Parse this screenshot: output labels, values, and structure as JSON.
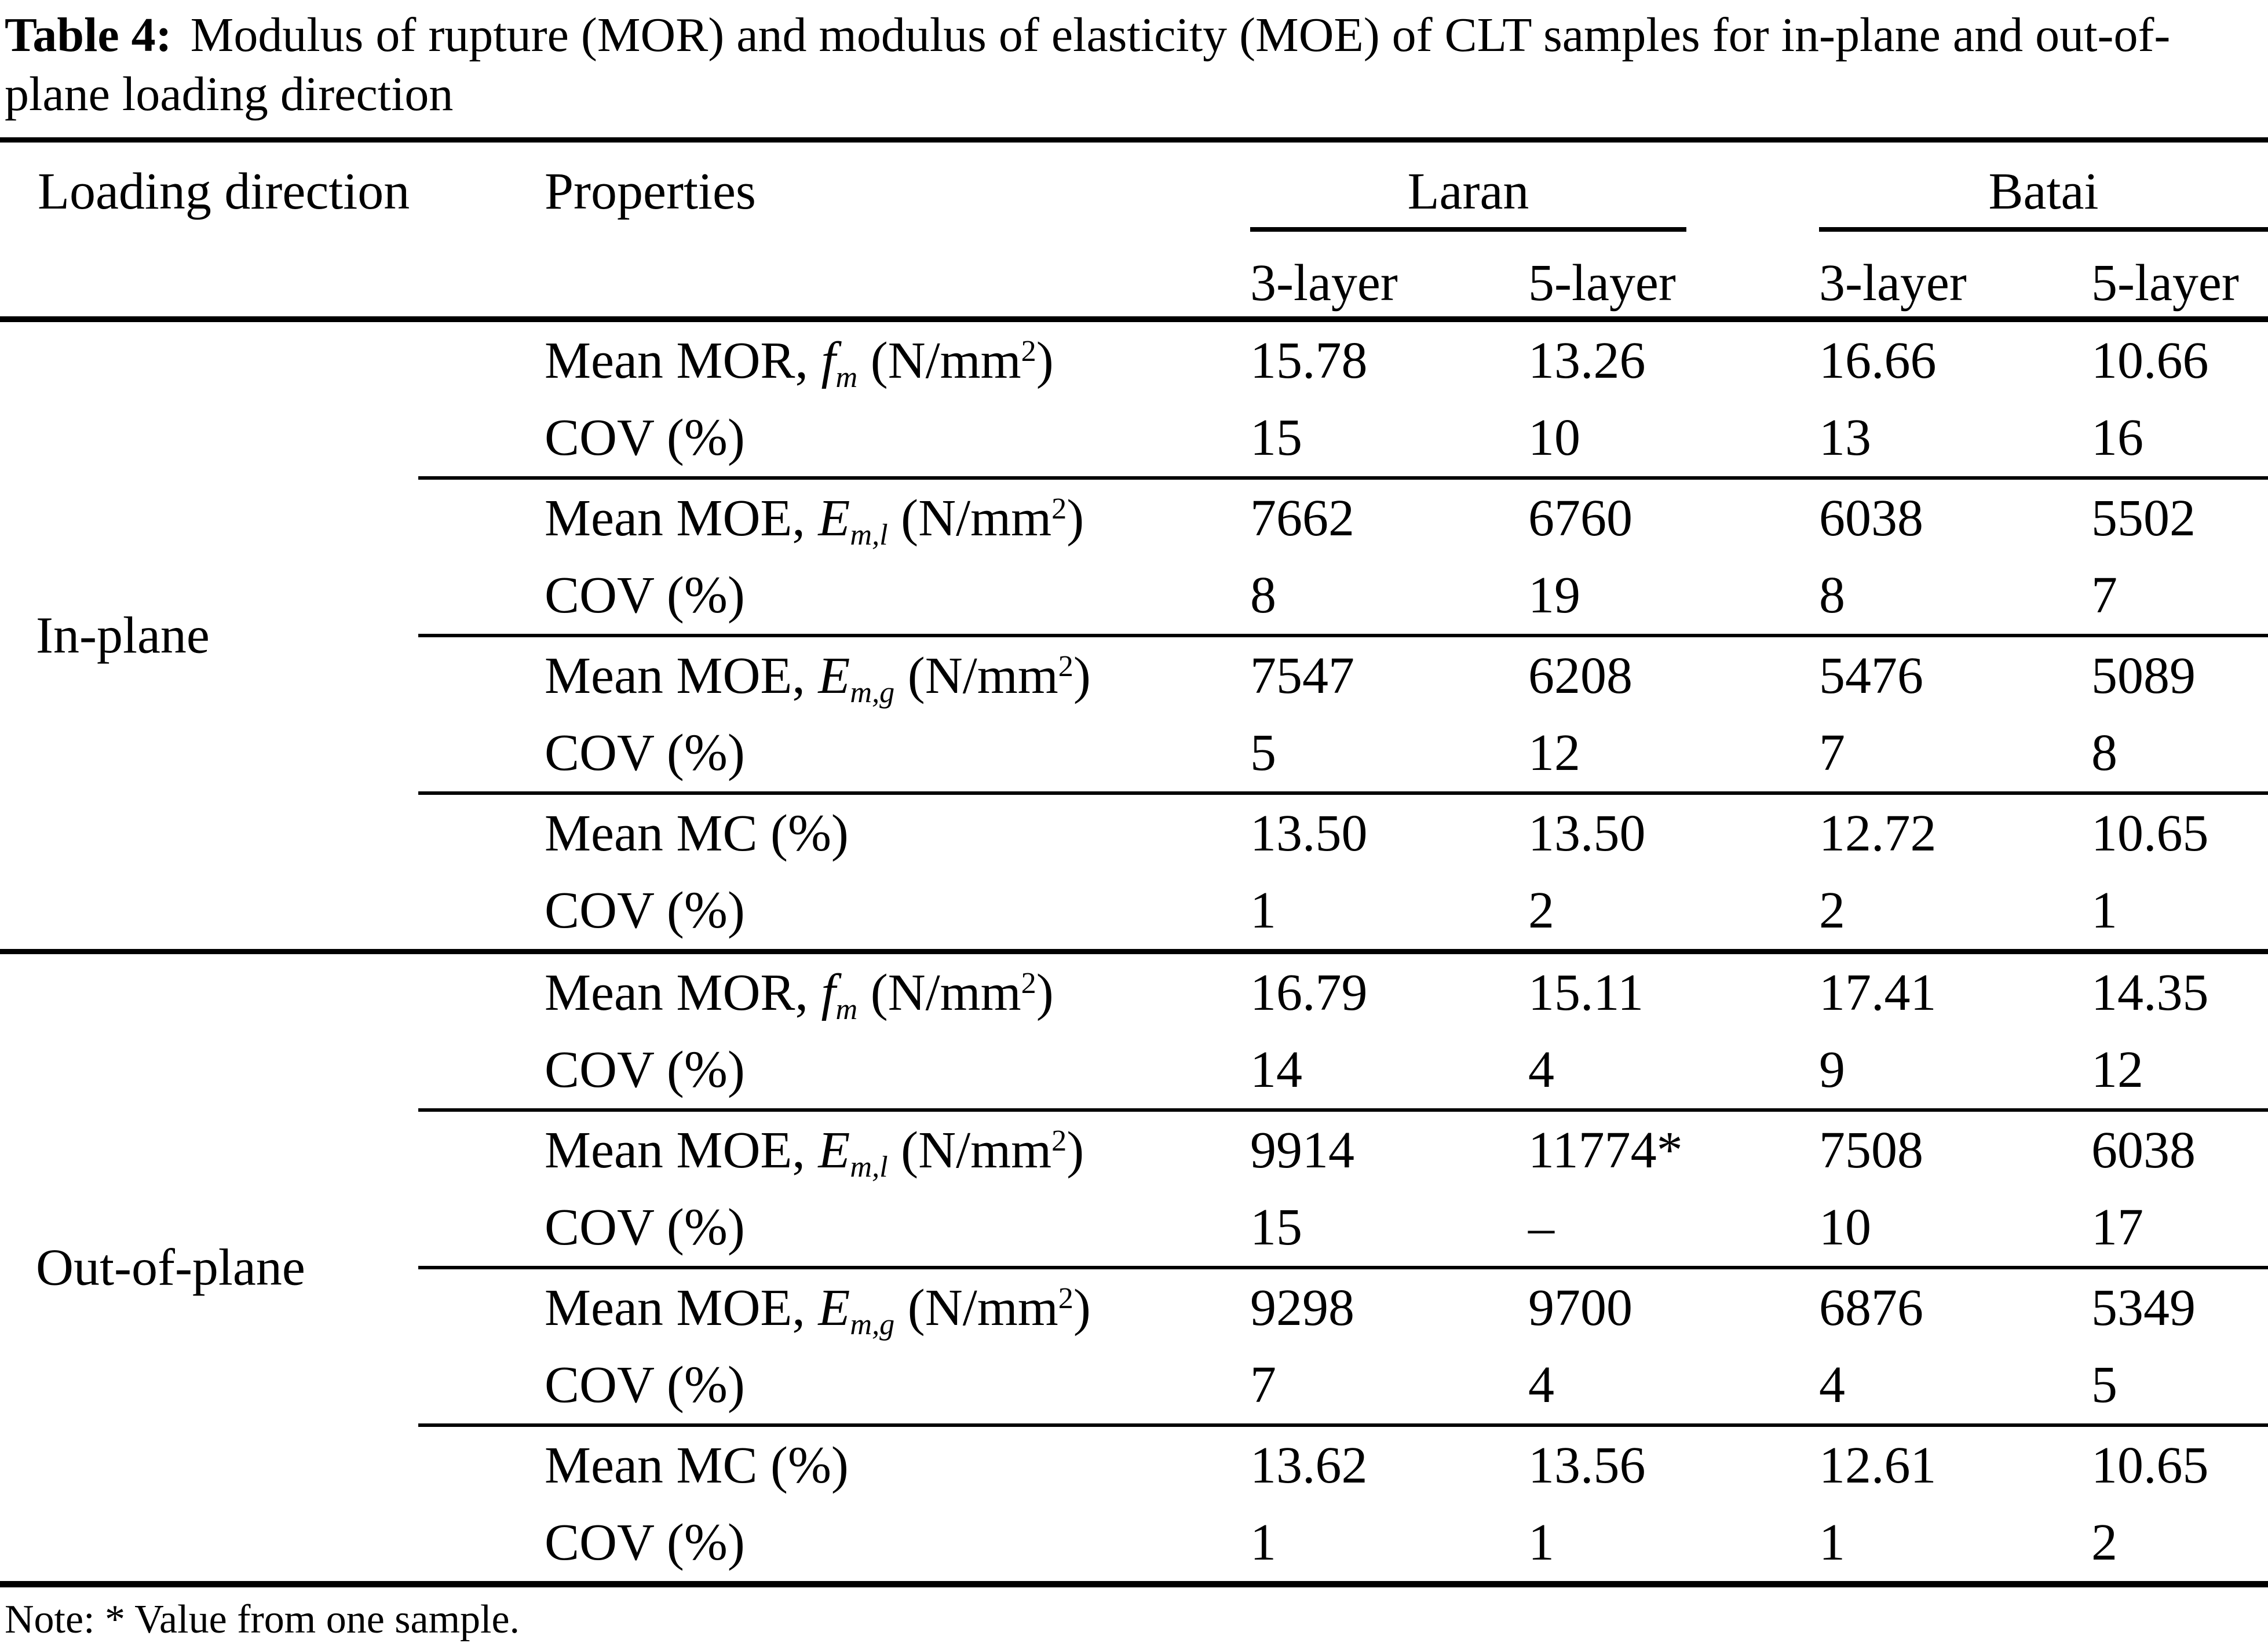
{
  "colors": {
    "text": "#000000",
    "background": "#ffffff",
    "rule": "#000000"
  },
  "title": {
    "label": "Table 4:",
    "text": "Modulus of rupture (MOR) and modulus of elasticity (MOE) of CLT samples for in-plane and out-of-plane loading direction"
  },
  "header": {
    "loading_direction": "Loading direction",
    "properties": "Properties",
    "groups": [
      "Laran",
      "Batai"
    ],
    "layers": [
      "3-layer",
      "5-layer",
      "3-layer",
      "5-layer"
    ]
  },
  "sections": [
    {
      "name": "In-plane",
      "rows": [
        {
          "label": {
            "pre": "Mean MOR, ",
            "sym": "f",
            "sub": "m",
            "mid": " (N/mm",
            "sup": "2",
            "post": ")"
          },
          "values": [
            "15.78",
            "13.26",
            "16.66",
            "10.66"
          ]
        },
        {
          "label": {
            "pre": "COV (%)"
          },
          "values": [
            "15",
            "10",
            "13",
            "16"
          ],
          "sep_after": true
        },
        {
          "label": {
            "pre": "Mean MOE, ",
            "sym": "E",
            "sub": "m,l",
            "mid": " (N/mm",
            "sup": "2",
            "post": ")"
          },
          "values": [
            "7662",
            "6760",
            "6038",
            "5502"
          ]
        },
        {
          "label": {
            "pre": "COV (%)"
          },
          "values": [
            "8",
            "19",
            "8",
            "7"
          ],
          "sep_after": true
        },
        {
          "label": {
            "pre": "Mean MOE, ",
            "sym": "E",
            "sub": "m,g",
            "mid": " (N/mm",
            "sup": "2",
            "post": ")"
          },
          "values": [
            "7547",
            "6208",
            "5476",
            "5089"
          ]
        },
        {
          "label": {
            "pre": "COV (%)"
          },
          "values": [
            "5",
            "12",
            "7",
            "8"
          ],
          "sep_after": true
        },
        {
          "label": {
            "pre": "Mean MC (%)"
          },
          "values": [
            "13.50",
            "13.50",
            "12.72",
            "10.65"
          ]
        },
        {
          "label": {
            "pre": "COV (%)"
          },
          "values": [
            "1",
            "2",
            "2",
            "1"
          ]
        }
      ]
    },
    {
      "name": "Out-of-plane",
      "rows": [
        {
          "label": {
            "pre": "Mean MOR, ",
            "sym": "f",
            "sub": "m",
            "mid": " (N/mm",
            "sup": "2",
            "post": ")"
          },
          "values": [
            "16.79",
            "15.11",
            "17.41",
            "14.35"
          ]
        },
        {
          "label": {
            "pre": "COV (%)"
          },
          "values": [
            "14",
            "4",
            "9",
            "12"
          ],
          "sep_after": true
        },
        {
          "label": {
            "pre": "Mean MOE, ",
            "sym": "E",
            "sub": "m,l",
            "mid": " (N/mm",
            "sup": "2",
            "post": ")"
          },
          "values": [
            "9914",
            "11774*",
            "7508",
            "6038"
          ]
        },
        {
          "label": {
            "pre": "COV (%)"
          },
          "values": [
            "15",
            "–",
            "10",
            "17"
          ],
          "sep_after": true
        },
        {
          "label": {
            "pre": "Mean MOE, ",
            "sym": "E",
            "sub": "m,g",
            "mid": " (N/mm",
            "sup": "2",
            "post": ")"
          },
          "values": [
            "9298",
            "9700",
            "6876",
            "5349"
          ]
        },
        {
          "label": {
            "pre": "COV (%)"
          },
          "values": [
            "7",
            "4",
            "4",
            "5"
          ],
          "sep_after": true
        },
        {
          "label": {
            "pre": "Mean MC (%)"
          },
          "values": [
            "13.62",
            "13.56",
            "12.61",
            "10.65"
          ]
        },
        {
          "label": {
            "pre": "COV (%)"
          },
          "values": [
            "1",
            "1",
            "1",
            "2"
          ]
        }
      ]
    }
  ],
  "note": "Note: * Value from one sample."
}
